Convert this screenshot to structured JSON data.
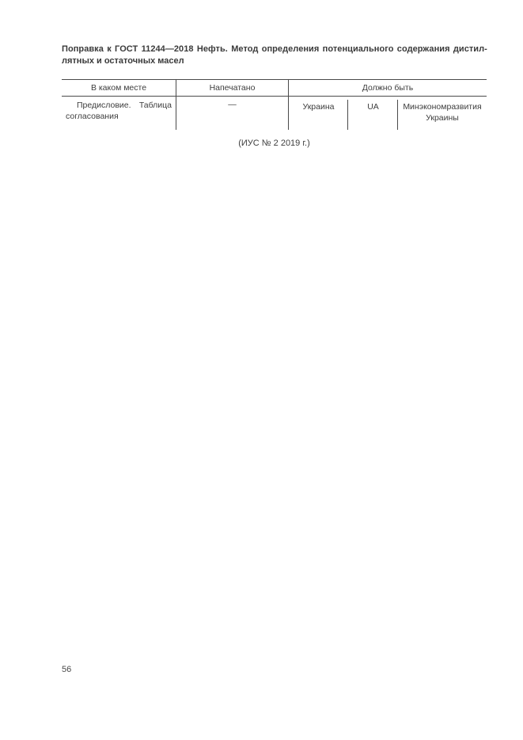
{
  "document": {
    "title_line1": "Поправка к ГОСТ 11244—2018 Нефть. Метод определения потенциального содержания дистил-",
    "title_line2": "лятных и остаточных масел",
    "correction_table": {
      "headers": {
        "where": "В каком месте",
        "printed": "Напечатано",
        "should_be": "Должно быть"
      },
      "row": {
        "where": "Предисловие. Таблица согласования",
        "printed": "—",
        "should_be_country": "Украина",
        "should_be_code": "UA",
        "should_be_body": "Минэкономразвития Украины"
      }
    },
    "issue_caption": "(ИУС № 2  2019 г.)",
    "page_number": "56"
  }
}
